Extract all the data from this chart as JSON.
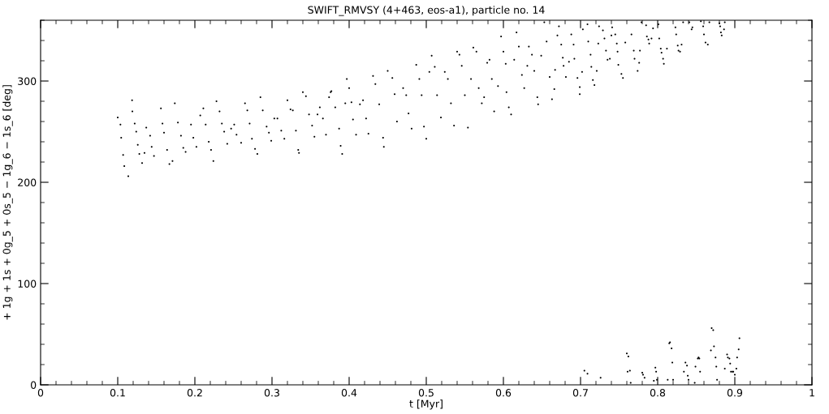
{
  "chart_data": {
    "type": "scatter",
    "title": "SWIFT_RMVSY (4+463, eos-a1), particle no. 14",
    "xlabel": "t [Myr]",
    "ylabel": "+ 1g + 1s + 0g_5 + 0s_5 − 1g_6 − 1s_6 [deg]",
    "xlim": [
      0,
      1
    ],
    "ylim": [
      0,
      360
    ],
    "xticks": [
      0,
      0.1,
      0.2,
      0.3,
      0.4,
      0.5,
      0.6,
      0.7,
      0.8,
      0.9,
      1
    ],
    "yticks": [
      0,
      100,
      200,
      300
    ],
    "grid": false,
    "series": [
      {
        "color": "#000000",
        "x": [
          0.1,
          0.1035,
          0.1045,
          0.107,
          0.1085,
          0.1137,
          0.1186,
          0.119,
          0.122,
          0.124,
          0.126,
          0.128,
          0.1316,
          0.1347,
          0.137,
          0.142,
          0.144,
          0.147,
          0.156,
          0.158,
          0.16,
          0.164,
          0.167,
          0.171,
          0.174,
          0.178,
          0.182,
          0.185,
          0.188,
          0.195,
          0.198,
          0.202,
          0.207,
          0.211,
          0.214,
          0.218,
          0.221,
          0.224,
          0.228,
          0.232,
          0.235,
          0.238,
          0.242,
          0.247,
          0.251,
          0.254,
          0.26,
          0.265,
          0.268,
          0.271,
          0.274,
          0.278,
          0.281,
          0.285,
          0.288,
          0.293,
          0.296,
          0.299,
          0.303,
          0.307,
          0.312,
          0.316,
          0.32,
          0.324,
          0.327,
          0.331,
          0.334,
          0.335,
          0.34,
          0.344,
          0.348,
          0.352,
          0.355,
          0.359,
          0.362,
          0.366,
          0.37,
          0.374,
          0.376,
          0.377,
          0.382,
          0.387,
          0.389,
          0.391,
          0.395,
          0.397,
          0.4,
          0.403,
          0.405,
          0.409,
          0.414,
          0.418,
          0.422,
          0.425,
          0.431,
          0.434,
          0.439,
          0.444,
          0.445,
          0.45,
          0.456,
          0.459,
          0.462,
          0.47,
          0.474,
          0.477,
          0.481,
          0.487,
          0.491,
          0.494,
          0.497,
          0.5,
          0.504,
          0.507,
          0.511,
          0.514,
          0.519,
          0.524,
          0.528,
          0.532,
          0.536,
          0.54,
          0.543,
          0.546,
          0.55,
          0.554,
          0.558,
          0.561,
          0.565,
          0.568,
          0.572,
          0.575,
          0.579,
          0.582,
          0.585,
          0.588,
          0.593,
          0.597,
          0.6,
          0.603,
          0.604,
          0.607,
          0.61,
          0.614,
          0.617,
          0.62,
          0.624,
          0.627,
          0.631,
          0.633,
          0.637,
          0.64,
          0.644,
          0.645,
          0.649,
          0.653,
          0.656,
          0.66,
          0.663,
          0.666,
          0.667,
          0.67,
          0.672,
          0.675,
          0.677,
          0.678,
          0.681,
          0.685,
          0.688,
          0.691,
          0.692,
          0.696,
          0.699,
          0.699,
          0.702,
          0.703,
          0.709,
          0.71,
          0.713,
          0.714,
          0.716,
          0.718,
          0.721,
          0.723,
          0.724,
          0.729,
          0.731,
          0.733,
          0.735,
          0.738,
          0.74,
          0.741,
          0.745,
          0.747,
          0.748,
          0.749,
          0.753,
          0.755,
          0.758,
          0.766,
          0.769,
          0.77,
          0.774,
          0.776,
          0.777,
          0.779,
          0.785,
          0.786,
          0.788,
          0.789,
          0.792,
          0.794,
          0.801,
          0.802,
          0.804,
          0.805,
          0.807,
          0.808,
          0.812,
          0.823,
          0.824,
          0.826,
          0.827,
          0.829,
          0.831,
          0.833,
          0.841,
          0.844,
          0.845,
          0.856,
          0.859,
          0.86,
          0.862,
          0.865,
          0.867,
          0.88,
          0.881,
          0.882,
          0.883,
          0.886,
          0.887,
          0.705,
          0.709,
          0.726,
          0.76,
          0.762,
          0.761,
          0.764,
          0.765,
          0.78,
          0.781,
          0.783,
          0.795,
          0.797,
          0.798,
          0.799,
          0.813,
          0.815,
          0.816,
          0.818,
          0.819,
          0.82,
          0.834,
          0.836,
          0.838,
          0.839,
          0.84,
          0.848,
          0.849,
          0.852,
          0.853,
          0.854,
          0.855,
          0.869,
          0.87,
          0.872,
          0.873,
          0.875,
          0.876,
          0.877,
          0.887,
          0.89,
          0.891,
          0.893,
          0.894,
          0.895,
          0.897,
          0.898,
          0.9,
          0.902,
          0.903,
          0.905,
          0.906
        ],
        "values": [
          264,
          257,
          244,
          227,
          216,
          206,
          281,
          270,
          258,
          250,
          237,
          228,
          219,
          229,
          254,
          246,
          235,
          226,
          273,
          258,
          249,
          232,
          218,
          221,
          278,
          259,
          246,
          234,
          230,
          257,
          244,
          235,
          266,
          273,
          257,
          240,
          232,
          221,
          280,
          270,
          258,
          250,
          238,
          253,
          257,
          247,
          239,
          278,
          271,
          258,
          243,
          233,
          228,
          284,
          271,
          255,
          249,
          241,
          263,
          263,
          251,
          243,
          281,
          272,
          271,
          251,
          232,
          229,
          289,
          285,
          267,
          256,
          245,
          267,
          274,
          263,
          247,
          284,
          289,
          290,
          274,
          253,
          236,
          228,
          278,
          302,
          293,
          279,
          262,
          247,
          277,
          281,
          263,
          248,
          305,
          297,
          277,
          244,
          235,
          310,
          303,
          287,
          260,
          293,
          286,
          268,
          253,
          316,
          302,
          286,
          255,
          243,
          309,
          325,
          314,
          286,
          264,
          309,
          302,
          278,
          256,
          329,
          326,
          315,
          286,
          254,
          302,
          333,
          329,
          293,
          278,
          284,
          318,
          321,
          302,
          270,
          295,
          344,
          329,
          317,
          289,
          274,
          267,
          321,
          348,
          334,
          306,
          293,
          315,
          334,
          326,
          310,
          284,
          277,
          325,
          358,
          339,
          304,
          282,
          292,
          311,
          345,
          354,
          336,
          323,
          315,
          304,
          319,
          346,
          336,
          322,
          303,
          287,
          294,
          309,
          351,
          356,
          339,
          326,
          314,
          301,
          296,
          310,
          337,
          354,
          350,
          342,
          330,
          321,
          322,
          345,
          353,
          346,
          337,
          329,
          316,
          307,
          303,
          338,
          346,
          330,
          322,
          310,
          318,
          330,
          358,
          355,
          344,
          341,
          337,
          342,
          352,
          356,
          342,
          332,
          328,
          322,
          317,
          332,
          353,
          346,
          335,
          330,
          329,
          336,
          358,
          358,
          351,
          353,
          359,
          354,
          346,
          338,
          336,
          358,
          357,
          354,
          348,
          345,
          351,
          358,
          14,
          11,
          7,
          31,
          28,
          13,
          14,
          2,
          12,
          10,
          7,
          4,
          17,
          13,
          5,
          5,
          41,
          42,
          36,
          22,
          5,
          13,
          22,
          19,
          9,
          5,
          2,
          18,
          26,
          27,
          26,
          13,
          34,
          56,
          54,
          38,
          27,
          18,
          5,
          16,
          30,
          27,
          26,
          21,
          13,
          13,
          13,
          10,
          16,
          27,
          35,
          46
        ]
      }
    ]
  }
}
